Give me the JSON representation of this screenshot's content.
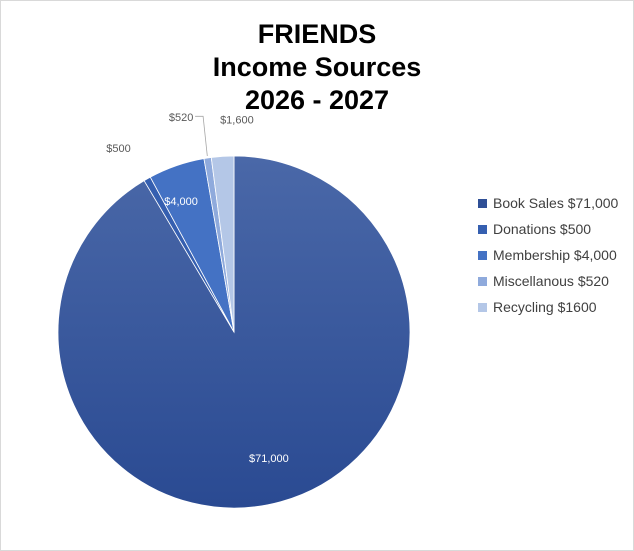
{
  "chart_data": {
    "type": "pie",
    "title_lines": [
      "FRIENDS",
      "Income Sources",
      "2026 - 2027"
    ],
    "categories": [
      "Book Sales",
      "Donations",
      "Membership",
      "Miscellanous",
      "Recycling"
    ],
    "values": [
      71000,
      500,
      4000,
      520,
      1600
    ],
    "data_labels": [
      "$71,000",
      "$500",
      "$4,000",
      "$520",
      "$1,600"
    ],
    "legend_labels": [
      "Book Sales $71,000",
      "Donations $500",
      "Membership $4,000",
      "Miscellanous $520",
      "Recycling $1600"
    ],
    "colors": [
      "#2f4f96",
      "#355fb0",
      "#4472c4",
      "#8faadc",
      "#b4c7e7"
    ],
    "legend_position": "right"
  }
}
